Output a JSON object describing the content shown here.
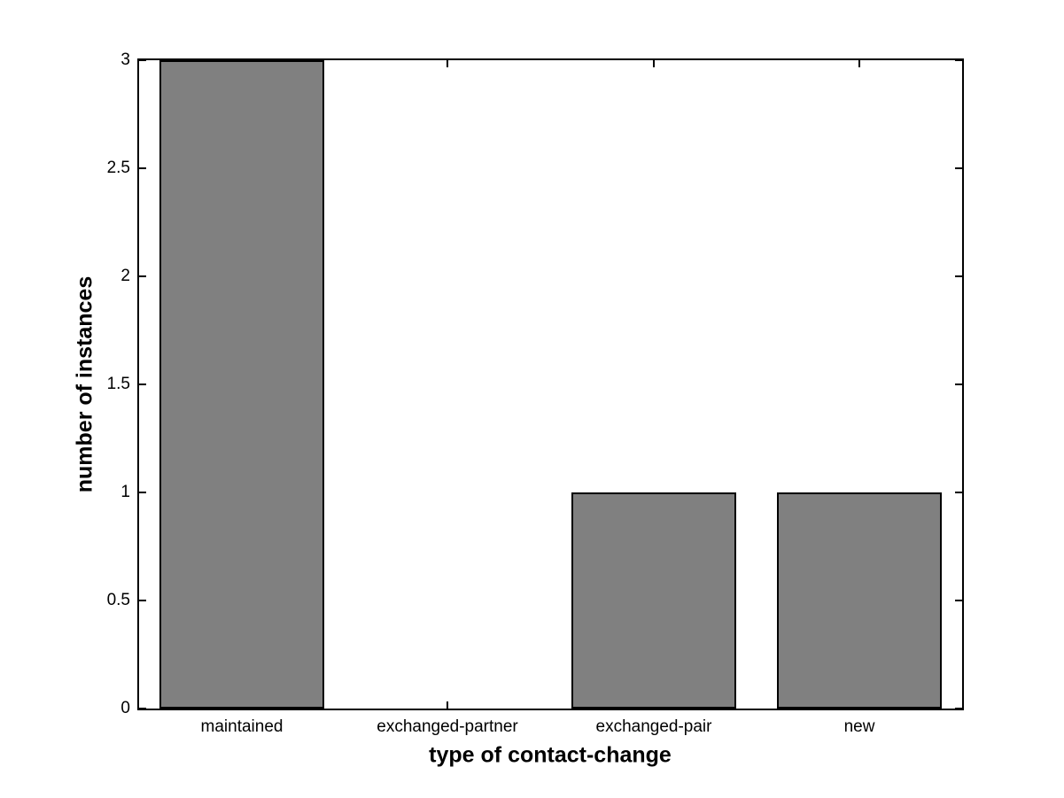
{
  "chart_data": {
    "type": "bar",
    "title": "",
    "xlabel": "type of contact-change",
    "ylabel": "number of instances",
    "categories": [
      "maintained",
      "exchanged-partner",
      "exchanged-pair",
      "new"
    ],
    "values": [
      3,
      0,
      1,
      1
    ],
    "ylim": [
      0,
      3
    ],
    "yticks": [
      0,
      0.5,
      1,
      1.5,
      2,
      2.5,
      3
    ],
    "ytick_labels": [
      "0",
      "0.5",
      "1",
      "1.5",
      "2",
      "2.5",
      "3"
    ],
    "bar_width_fraction": 0.8,
    "bar_color": "#808080",
    "bar_edge_color": "#000000",
    "axis_color": "#000000",
    "background_color": "#ffffff",
    "grid": false,
    "legend": null,
    "box": true,
    "tick_direction": "in"
  }
}
